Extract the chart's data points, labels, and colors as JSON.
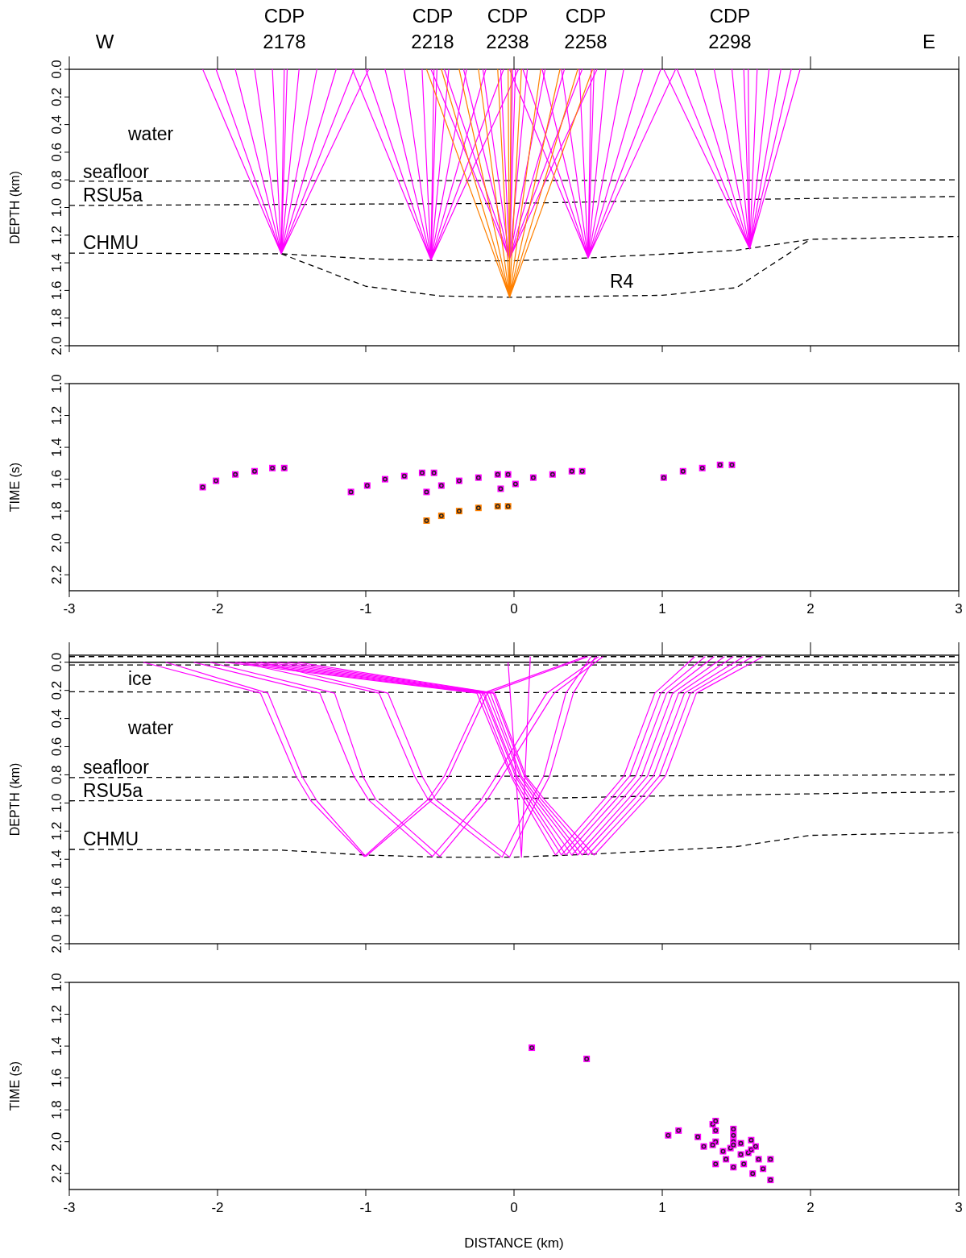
{
  "chart_data": [
    {
      "type": "line",
      "xlim": [
        -3,
        3
      ],
      "ylim": [
        2,
        0
      ],
      "xticks": [
        -3,
        -2,
        -1,
        0,
        1,
        2,
        3
      ],
      "yticks": [
        {
          "value": 0,
          "label": "0.0"
        },
        0.2,
        0.4,
        0.6,
        0.8,
        {
          "value": 1,
          "label": "1.0"
        },
        1.2,
        1.4,
        1.6,
        1.8,
        {
          "value": 2,
          "label": "2.0"
        }
      ],
      "tick_labels": "y",
      "ylabel": "DEPTH (km)",
      "annotations": [
        "CDP 2178",
        "CDP 2218",
        "CDP 2238",
        "CDP 2258",
        "CDP 2298",
        "W",
        "E",
        "water",
        "R4",
        "seafloor",
        "RSU5a",
        "CHMU"
      ],
      "series": [
        {
          "color": "#000000",
          "line_style": "dashed",
          "x": [
            -3,
            3
          ],
          "values": [
            0.81,
            0.8
          ]
        },
        {
          "color": "#000000",
          "line_style": "dashed",
          "x": [
            -3,
            -1,
            0,
            1,
            3
          ],
          "values": [
            0.985,
            0.975,
            0.97,
            0.95,
            0.92
          ]
        },
        {
          "color": "#000000",
          "line_style": "dashed",
          "x": [
            -3,
            -1.57,
            -1,
            -0.5,
            0,
            0.5,
            1.5,
            2,
            3
          ],
          "values": [
            1.33,
            1.335,
            1.37,
            1.385,
            1.385,
            1.365,
            1.31,
            1.23,
            1.21
          ]
        },
        {
          "color": "#000000",
          "line_style": "dashed",
          "x": [
            -1.57,
            -1,
            -0.5,
            0,
            1,
            1.5,
            2
          ],
          "values": [
            1.335,
            1.57,
            1.64,
            1.65,
            1.635,
            1.58,
            1.23
          ]
        },
        {
          "color": "#ff00ff",
          "x": [
            -2.1,
            -1.57,
            -2.01,
            -1.57,
            -1.88,
            -1.57,
            -1.75,
            -1.57,
            -1.63,
            -1.57,
            -1.55,
            -1.57,
            -1.53,
            -1.57,
            -1.45,
            -1.57,
            -1.33,
            -1.57,
            -1.2,
            -1.57,
            -1.08,
            -1.57,
            -0.98
          ],
          "values": [
            0,
            1.335,
            0,
            1.335,
            0,
            1.335,
            0,
            1.335,
            0,
            1.335,
            0,
            1.335,
            0,
            1.335,
            0,
            1.335,
            0,
            1.335,
            0,
            1.335,
            0,
            1.335,
            0
          ]
        },
        {
          "color": "#ff00ff",
          "x": [
            -1.09,
            -0.56,
            -1.0,
            -0.56,
            -0.87,
            -0.56,
            -0.74,
            -0.56,
            -0.62,
            -0.56,
            -0.54,
            -0.56,
            -0.52,
            -0.56,
            -0.44,
            -0.56,
            -0.32,
            -0.56,
            -0.19,
            -0.56,
            -0.07,
            -0.56,
            0.03
          ],
          "values": [
            0,
            1.38,
            0,
            1.38,
            0,
            1.38,
            0,
            1.38,
            0,
            1.38,
            0,
            1.38,
            0,
            1.38,
            0,
            1.38,
            0,
            1.38,
            0,
            1.38,
            0,
            1.38,
            0
          ]
        },
        {
          "color": "#ff00ff",
          "x": [
            -0.56,
            -0.03,
            -0.47,
            -0.03,
            -0.34,
            -0.03,
            -0.21,
            -0.03,
            -0.09,
            -0.03,
            -0.01,
            -0.03,
            0.01,
            -0.03,
            0.09,
            -0.03,
            0.21,
            -0.03,
            0.34,
            -0.03,
            0.46,
            -0.03,
            0.56
          ],
          "values": [
            0,
            1.37,
            0,
            1.37,
            0,
            1.37,
            0,
            1.37,
            0,
            1.37,
            0,
            1.37,
            0,
            1.37,
            0,
            1.37,
            0,
            1.37,
            0,
            1.37,
            0,
            1.37,
            0
          ]
        },
        {
          "color": "#ff00ff",
          "x": [
            -0.03,
            0.5,
            0.06,
            0.5,
            0.19,
            0.5,
            0.32,
            0.5,
            0.44,
            0.5,
            0.52,
            0.5,
            0.54,
            0.5,
            0.62,
            0.5,
            0.74,
            0.5,
            0.87,
            0.5,
            0.99,
            0.5,
            1.09
          ],
          "values": [
            0,
            1.365,
            0,
            1.365,
            0,
            1.365,
            0,
            1.365,
            0,
            1.365,
            0,
            1.365,
            0,
            1.365,
            0,
            1.365,
            0,
            1.365,
            0,
            1.365,
            0,
            1.365,
            0
          ]
        },
        {
          "color": "#ff00ff",
          "x": [
            1.01,
            1.59,
            1.1,
            1.59,
            1.22,
            1.59,
            1.35,
            1.59,
            1.47,
            1.59,
            1.55,
            1.59,
            1.58,
            1.59,
            1.64,
            1.59,
            1.72,
            1.59,
            1.8,
            1.59,
            1.87,
            1.59,
            1.93
          ],
          "values": [
            0,
            1.3,
            0,
            1.3,
            0,
            1.3,
            0,
            1.3,
            0,
            1.3,
            0,
            1.3,
            0,
            1.3,
            0,
            1.3,
            0,
            1.3,
            0,
            1.3,
            0,
            1.3,
            0
          ]
        },
        {
          "color": "#ff8000",
          "x": [
            -0.59,
            -0.03,
            -0.49,
            -0.03,
            -0.37,
            -0.03,
            -0.24,
            -0.03,
            -0.11,
            -0.03,
            -0.04,
            -0.03,
            -0.02,
            -0.03,
            0.05,
            -0.03,
            0.18,
            -0.03,
            0.31,
            -0.03,
            0.43,
            -0.03,
            0.53
          ],
          "values": [
            0,
            1.65,
            0,
            1.65,
            0,
            1.65,
            0,
            1.65,
            0,
            1.65,
            0,
            1.65,
            0,
            1.65,
            0,
            1.65,
            0,
            1.65,
            0,
            1.65,
            0,
            1.65,
            0
          ]
        }
      ]
    },
    {
      "type": "scatter",
      "marker": "square",
      "xlim": [
        -3,
        3
      ],
      "ylim": [
        2.3,
        1
      ],
      "xticks": [
        -3,
        -2,
        -1,
        0,
        1,
        2,
        3
      ],
      "yticks": [
        {
          "value": 1,
          "label": "1.0"
        },
        1.2,
        1.4,
        1.6,
        1.8,
        {
          "value": 2,
          "label": "2.0"
        },
        2.2
      ],
      "ylabel": "TIME (s)",
      "series": [
        {
          "color": "#ff00ff",
          "x": [
            -2.1,
            -2.01,
            -1.88,
            -1.75,
            -1.63,
            -1.55
          ],
          "values": [
            1.65,
            1.61,
            1.57,
            1.55,
            1.53,
            1.53
          ]
        },
        {
          "color": "#ff00ff",
          "x": [
            -1.1,
            -0.99,
            -0.87,
            -0.74,
            -0.62,
            -0.54
          ],
          "values": [
            1.68,
            1.64,
            1.6,
            1.58,
            1.56,
            1.56
          ]
        },
        {
          "color": "#ff00ff",
          "x": [
            -0.59,
            -0.49,
            -0.37,
            -0.24,
            -0.11,
            -0.04
          ],
          "values": [
            1.68,
            1.64,
            1.61,
            1.59,
            1.57,
            1.57
          ]
        },
        {
          "color": "#ff00ff",
          "x": [
            -0.09,
            0.01,
            0.13,
            0.26,
            0.39,
            0.46
          ],
          "values": [
            1.66,
            1.63,
            1.59,
            1.57,
            1.55,
            1.55
          ]
        },
        {
          "color": "#ff00ff",
          "x": [
            1.01,
            1.14,
            1.27,
            1.39,
            1.47
          ],
          "values": [
            1.59,
            1.55,
            1.53,
            1.51,
            1.51
          ]
        },
        {
          "color": "#ff8000",
          "x": [
            -0.59,
            -0.49,
            -0.37,
            -0.24,
            -0.11,
            -0.04
          ],
          "values": [
            1.86,
            1.83,
            1.8,
            1.78,
            1.77,
            1.77
          ]
        }
      ]
    },
    {
      "type": "line",
      "xlim": [
        -3,
        3
      ],
      "ylim": [
        2,
        -0.05
      ],
      "xticks": [
        -3,
        -2,
        -1,
        0,
        1,
        2,
        3
      ],
      "yticks": [
        {
          "value": 0,
          "label": "0.0"
        },
        0.2,
        0.4,
        0.6,
        0.8,
        {
          "value": 1,
          "label": "1.0"
        },
        1.2,
        1.4,
        1.6,
        1.8,
        {
          "value": 2,
          "label": "2.0"
        }
      ],
      "tick_labels": "y",
      "ylabel": "DEPTH (km)",
      "ref_lines": [
        {
          "axis": "y",
          "value": 0,
          "color": "#000000"
        }
      ],
      "annotations": [
        "ice",
        "water",
        "seafloor",
        "RSU5a",
        "CHMU"
      ],
      "series": [
        {
          "color": "#000000",
          "line_style": "dashed",
          "x": [
            -3,
            3
          ],
          "values": [
            -0.04,
            -0.04
          ]
        },
        {
          "color": "#000000",
          "line_style": "dashed",
          "x": [
            -3,
            3
          ],
          "values": [
            0.02,
            0.02
          ]
        },
        {
          "color": "#000000",
          "line_style": "dashed",
          "x": [
            -3,
            3
          ],
          "values": [
            0.21,
            0.22
          ]
        },
        {
          "color": "#000000",
          "line_style": "dashed",
          "x": [
            -3,
            3
          ],
          "values": [
            0.82,
            0.8
          ]
        },
        {
          "color": "#000000",
          "line_style": "dashed",
          "x": [
            -3,
            -1,
            0,
            1,
            3
          ],
          "values": [
            0.985,
            0.975,
            0.97,
            0.95,
            0.92
          ]
        },
        {
          "color": "#000000",
          "line_style": "dashed",
          "x": [
            -3,
            -1.57,
            -1,
            -0.5,
            0,
            0.5,
            1.5,
            2,
            3
          ],
          "values": [
            1.33,
            1.335,
            1.37,
            1.385,
            1.385,
            1.365,
            1.31,
            1.23,
            1.21
          ]
        },
        {
          "color": "#ff00ff",
          "x": [
            -1.95,
            -0.25,
            -0.02,
            0.06,
            0.28,
            0.62,
            0.74,
            0.95,
            1.22
          ],
          "values": [
            0,
            0.22,
            0.81,
            0.97,
            1.37,
            0.96,
            0.81,
            0.22,
            -0.04
          ]
        },
        {
          "color": "#ff00ff",
          "x": [
            -1.88,
            -0.23,
            -0.01,
            0.08,
            0.32,
            0.66,
            0.78,
            0.99,
            1.29
          ],
          "values": [
            0,
            0.22,
            0.81,
            0.97,
            1.37,
            0.96,
            0.81,
            0.22,
            -0.04
          ]
        },
        {
          "color": "#ff00ff",
          "x": [
            -1.81,
            -0.21,
            0.01,
            0.1,
            0.35,
            0.7,
            0.82,
            1.03,
            1.35
          ],
          "values": [
            0,
            0.22,
            0.81,
            0.97,
            1.37,
            0.96,
            0.81,
            0.22,
            -0.04
          ]
        },
        {
          "color": "#ff00ff",
          "x": [
            -1.74,
            -0.2,
            0.02,
            0.12,
            0.39,
            0.74,
            0.86,
            1.07,
            1.42
          ],
          "values": [
            0,
            0.22,
            0.81,
            0.97,
            1.37,
            0.96,
            0.81,
            0.22,
            -0.04
          ]
        },
        {
          "color": "#ff00ff",
          "x": [
            -1.67,
            -0.18,
            0.04,
            0.14,
            0.43,
            0.78,
            0.9,
            1.11,
            1.48
          ],
          "values": [
            0,
            0.22,
            0.81,
            0.97,
            1.37,
            0.96,
            0.81,
            0.22,
            -0.04
          ]
        },
        {
          "color": "#ff00ff",
          "x": [
            -1.6,
            -0.16,
            0.05,
            0.16,
            0.46,
            0.82,
            0.94,
            1.15,
            1.55
          ],
          "values": [
            0,
            0.22,
            0.81,
            0.97,
            1.37,
            0.96,
            0.81,
            0.22,
            -0.04
          ]
        },
        {
          "color": "#ff00ff",
          "x": [
            -1.53,
            -0.14,
            0.07,
            0.18,
            0.5,
            0.86,
            0.98,
            1.19,
            1.61
          ],
          "values": [
            0,
            0.22,
            0.81,
            0.97,
            1.37,
            0.96,
            0.81,
            0.22,
            -0.04
          ]
        },
        {
          "color": "#ff00ff",
          "x": [
            -1.46,
            -0.13,
            0.08,
            0.2,
            0.54,
            0.9,
            1.02,
            1.23,
            1.68
          ],
          "values": [
            0,
            0.22,
            0.81,
            0.97,
            1.37,
            0.96,
            0.81,
            0.22,
            -0.04
          ]
        },
        {
          "color": "#ff00ff",
          "x": [
            -2.5,
            -1.71,
            -1.47,
            -1.37,
            -1.01,
            -0.58,
            -0.47,
            -0.21,
            0.48
          ],
          "values": [
            0,
            0.22,
            0.81,
            0.985,
            1.38,
            0.975,
            0.81,
            0.22,
            -0.04
          ]
        },
        {
          "color": "#ff00ff",
          "x": [
            -2.35,
            -1.66,
            -1.43,
            -1.33,
            -1.0,
            -0.55,
            -0.44,
            -0.18,
            0.5
          ],
          "values": [
            0,
            0.22,
            0.81,
            0.985,
            1.38,
            0.975,
            0.81,
            0.22,
            -0.04
          ]
        },
        {
          "color": "#ff00ff",
          "x": [
            -2.16,
            -1.31,
            -1.08,
            -0.98,
            -0.55,
            -0.22,
            -0.12,
            0.22,
            0.57
          ],
          "values": [
            0,
            0.22,
            0.81,
            0.98,
            1.38,
            0.975,
            0.81,
            0.22,
            -0.04
          ]
        },
        {
          "color": "#ff00ff",
          "x": [
            -2.05,
            -1.21,
            -1.02,
            -0.93,
            -0.5,
            -0.18,
            -0.08,
            0.27,
            0.6
          ],
          "values": [
            0,
            0.22,
            0.81,
            0.98,
            1.38,
            0.975,
            0.81,
            0.22,
            -0.04
          ]
        },
        {
          "color": "#ff00ff",
          "x": [
            -1.85,
            -0.91,
            -0.67,
            -0.58,
            -0.08,
            0.12,
            0.2,
            0.35,
            0.52
          ],
          "values": [
            0,
            0.22,
            0.81,
            0.975,
            1.385,
            0.97,
            0.81,
            0.22,
            -0.04
          ]
        },
        {
          "color": "#ff00ff",
          "x": [
            -1.71,
            -0.85,
            -0.62,
            -0.53,
            -0.03,
            0.16,
            0.24,
            0.4,
            0.55
          ],
          "values": [
            0,
            0.22,
            0.81,
            0.975,
            1.385,
            0.97,
            0.81,
            0.22,
            -0.04
          ]
        },
        {
          "color": "#ff00ff",
          "x": [
            -0.04,
            0.05,
            0.11
          ],
          "values": [
            0,
            1.385,
            -0.04
          ]
        }
      ]
    },
    {
      "type": "scatter",
      "marker": "square",
      "xlim": [
        -3,
        3
      ],
      "ylim": [
        2.3,
        1
      ],
      "xticks": [
        -3,
        -2,
        -1,
        0,
        1,
        2,
        3
      ],
      "yticks": [
        {
          "value": 1,
          "label": "1.0"
        },
        1.2,
        1.4,
        1.6,
        1.8,
        {
          "value": 2,
          "label": "2.0"
        },
        2.2
      ],
      "ylabel": "TIME (s)",
      "xlabel": "DISTANCE (km)",
      "series": [
        {
          "color": "#ff00ff",
          "x": [
            0.12,
            0.49,
            1.04,
            1.11,
            1.24,
            1.28,
            1.34,
            1.36,
            1.36,
            1.36,
            1.34,
            1.36,
            1.41,
            1.43,
            1.46,
            1.48,
            1.48,
            1.48,
            1.48,
            1.48,
            1.53,
            1.53,
            1.55,
            1.58,
            1.6,
            1.6,
            1.63,
            1.61,
            1.65,
            1.68,
            1.73,
            1.73
          ],
          "values": [
            1.41,
            1.48,
            1.96,
            1.93,
            1.97,
            2.03,
            1.89,
            1.87,
            1.93,
            2.0,
            2.02,
            2.14,
            2.06,
            2.11,
            2.04,
            1.92,
            1.96,
            2.0,
            2.02,
            2.16,
            2.01,
            2.08,
            2.14,
            2.07,
            1.99,
            2.05,
            2.03,
            2.2,
            2.11,
            2.17,
            2.11,
            2.24
          ]
        }
      ]
    }
  ]
}
